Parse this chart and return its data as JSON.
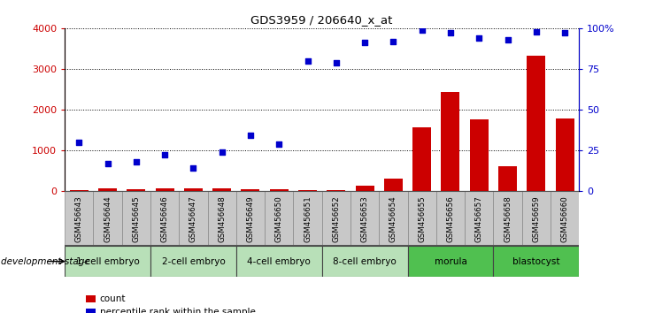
{
  "title": "GDS3959 / 206640_x_at",
  "samples": [
    "GSM456643",
    "GSM456644",
    "GSM456645",
    "GSM456646",
    "GSM456647",
    "GSM456648",
    "GSM456649",
    "GSM456650",
    "GSM456651",
    "GSM456652",
    "GSM456653",
    "GSM456654",
    "GSM456655",
    "GSM456656",
    "GSM456657",
    "GSM456658",
    "GSM456659",
    "GSM456660"
  ],
  "count": [
    30,
    60,
    50,
    70,
    60,
    60,
    50,
    50,
    30,
    30,
    130,
    300,
    1570,
    2430,
    1750,
    600,
    3330,
    1790
  ],
  "percentile": [
    30,
    17,
    18,
    22,
    14,
    24,
    34,
    29,
    80,
    79,
    91,
    92,
    99,
    97,
    94,
    93,
    98,
    97
  ],
  "bar_color": "#cc0000",
  "scatter_color": "#0000cc",
  "ylim_left": [
    0,
    4000
  ],
  "ylim_right": [
    0,
    100
  ],
  "yticks_left": [
    0,
    1000,
    2000,
    3000,
    4000
  ],
  "yticks_right": [
    0,
    25,
    50,
    75,
    100
  ],
  "ytick_labels_right": [
    "0",
    "25",
    "50",
    "75",
    "100%"
  ],
  "grid_color": "black",
  "stage_groups": [
    {
      "label": "1-cell embryo",
      "start": 0,
      "end": 3,
      "color": "#b8e0b8"
    },
    {
      "label": "2-cell embryo",
      "start": 3,
      "end": 6,
      "color": "#b8e0b8"
    },
    {
      "label": "4-cell embryo",
      "start": 6,
      "end": 9,
      "color": "#b8e0b8"
    },
    {
      "label": "8-cell embryo",
      "start": 9,
      "end": 12,
      "color": "#b8e0b8"
    },
    {
      "label": "morula",
      "start": 12,
      "end": 15,
      "color": "#50c050"
    },
    {
      "label": "blastocyst",
      "start": 15,
      "end": 18,
      "color": "#50c050"
    }
  ],
  "tick_bg_color": "#c8c8c8",
  "legend_count_label": "count",
  "legend_pct_label": "percentile rank within the sample",
  "dev_stage_label": "development stage"
}
